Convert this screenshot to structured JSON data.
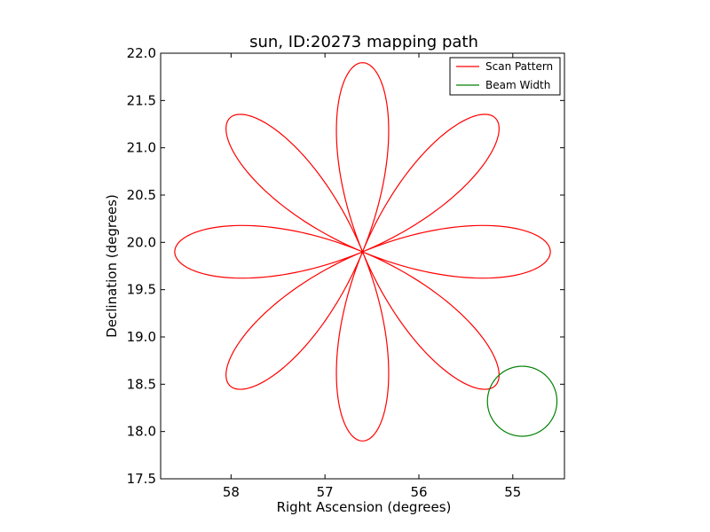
{
  "chart_data": {
    "type": "line",
    "title": "sun, ID:20273 mapping path",
    "xlabel": "Right Ascension (degrees)",
    "ylabel": "Declination (degrees)",
    "xlim": [
      58.75,
      54.45
    ],
    "ylim": [
      17.5,
      22.0
    ],
    "x_reversed": true,
    "xticks": [
      58,
      57,
      56,
      55
    ],
    "xtick_labels": [
      "58",
      "57",
      "56",
      "55"
    ],
    "yticks": [
      17.5,
      18.0,
      18.5,
      19.0,
      19.5,
      20.0,
      20.5,
      21.0,
      21.5,
      22.0
    ],
    "ytick_labels": [
      "17.5",
      "18.0",
      "18.5",
      "19.0",
      "19.5",
      "20.0",
      "20.5",
      "21.0",
      "21.5",
      "22.0"
    ],
    "grid": false,
    "legend_position": "top-right",
    "series": [
      {
        "name": "Scan Pattern",
        "color": "#ff0000",
        "pattern": "rose",
        "center": [
          56.6,
          19.9
        ],
        "petal_length_ra": 2.0,
        "petal_length_dec": 2.0,
        "petals": 8
      },
      {
        "name": "Beam Width",
        "color": "#008000",
        "pattern": "circle",
        "center": [
          54.9,
          18.32
        ],
        "radius_ra": 0.37,
        "radius_dec": 0.37
      }
    ]
  }
}
